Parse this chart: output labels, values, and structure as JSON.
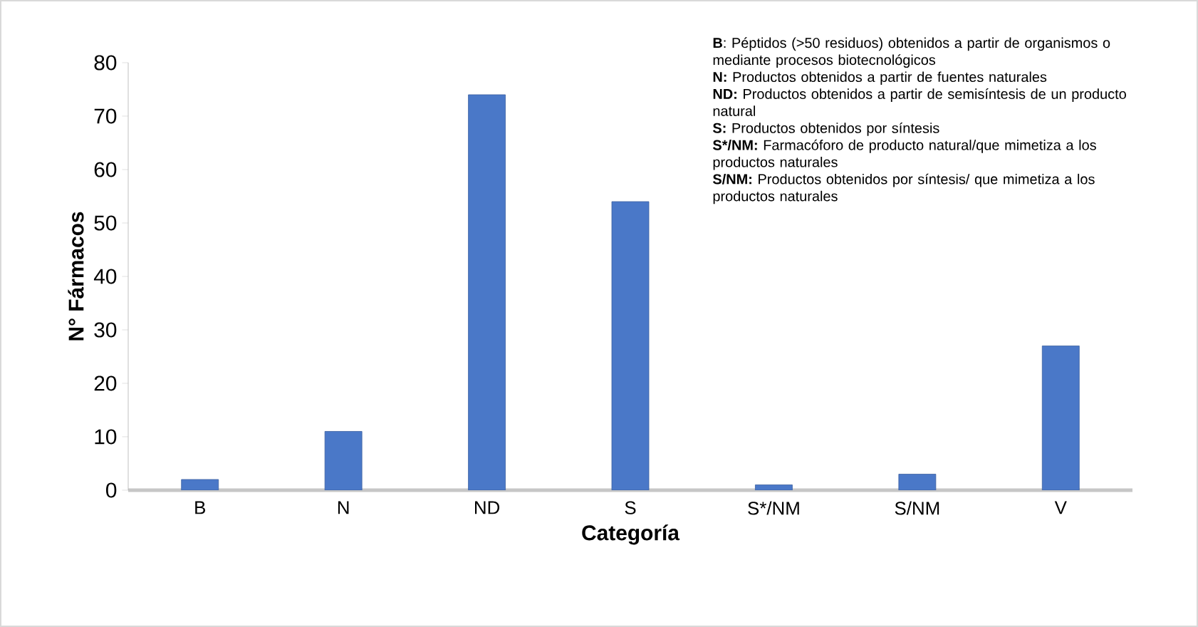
{
  "chart_data": {
    "type": "bar",
    "xlabel": "Categoría",
    "ylabel": "N° Fármacos",
    "categories": [
      "B",
      "N",
      "ND",
      "S",
      "S*/NM",
      "S/NM",
      "V"
    ],
    "values": [
      2,
      11,
      74,
      54,
      1,
      3,
      27
    ],
    "color": "#4a78c8",
    "ylim": [
      0,
      80
    ],
    "yticks": [
      0,
      10,
      20,
      30,
      40,
      50,
      60,
      70,
      80
    ],
    "grid": false,
    "annotations": [
      "**B**: Péptidos (>50 residuos) obtenidos a partir de organismos o mediante procesos biotecnológicos",
      "**N:** Productos obtenidos a partir de fuentes naturales",
      "**ND:** Productos obtenidos a partir de semisíntesis de un producto natural",
      "**S:** Productos obtenidos por síntesis",
      "**S*/NM:** Farmacóforo de producto natural/que mimetiza a los productos naturales",
      "**S/NM:** Productos obtenidos por síntesis/ que mimetiza a los productos naturales"
    ]
  }
}
